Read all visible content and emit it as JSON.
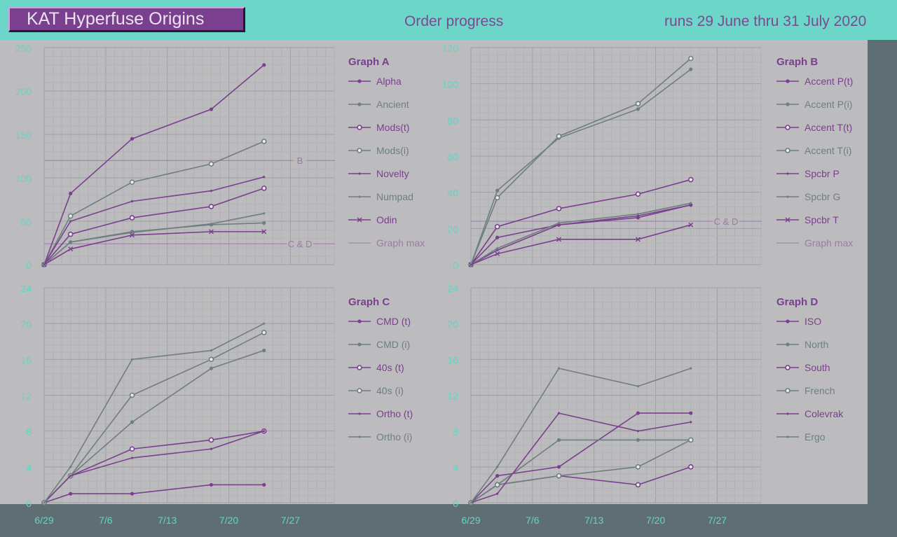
{
  "header": {
    "logo": "KAT Hyperfuse Origins",
    "subtitle": "Order progress",
    "runs": "runs 29 June thru 31 July 2020"
  },
  "colors": {
    "purple": "#7b3f8f",
    "gray": "#6e7f7f",
    "axis_text": "#5fd6c6",
    "refline": "#9c7ba6"
  },
  "chart_data": [
    {
      "id": "A",
      "type": "line",
      "title": "Graph A",
      "ylim": [
        0,
        250
      ],
      "yticks": [
        0,
        50,
        100,
        150,
        200,
        250
      ],
      "xlabels": [
        "6/29",
        "7/6",
        "7/13",
        "7/20",
        "7/27"
      ],
      "x": [
        0,
        3,
        10,
        19,
        25
      ],
      "series": [
        {
          "name": "Alpha",
          "color": "purple",
          "marker": "dot",
          "values": [
            0,
            82,
            145,
            179,
            230
          ]
        },
        {
          "name": "Ancient",
          "color": "gray",
          "marker": "dot",
          "values": [
            0,
            26,
            38,
            46,
            48
          ]
        },
        {
          "name": "Mods(t)",
          "color": "purple",
          "marker": "circle",
          "values": [
            0,
            35,
            54,
            67,
            88
          ]
        },
        {
          "name": "Mods(i)",
          "color": "gray",
          "marker": "circle",
          "values": [
            0,
            56,
            95,
            116,
            142
          ]
        },
        {
          "name": "Novelty",
          "color": "purple",
          "marker": "small",
          "values": [
            0,
            50,
            73,
            85,
            101
          ]
        },
        {
          "name": "Numpad",
          "color": "gray",
          "marker": "small",
          "values": [
            0,
            26,
            37,
            47,
            59
          ]
        },
        {
          "name": "Odin",
          "color": "purple",
          "marker": "x",
          "values": [
            0,
            18,
            34,
            38,
            38
          ]
        }
      ],
      "graph_max_label": "Graph max",
      "reflines": [
        {
          "label": "B",
          "value": 120
        },
        {
          "label": "C & D",
          "value": 24
        }
      ]
    },
    {
      "id": "B",
      "type": "line",
      "title": "Graph B",
      "ylim": [
        0,
        120
      ],
      "yticks": [
        0,
        20,
        40,
        60,
        80,
        100,
        120
      ],
      "xlabels": [
        "6/29",
        "7/6",
        "7/13",
        "7/20",
        "7/27"
      ],
      "x": [
        0,
        3,
        10,
        19,
        25
      ],
      "series": [
        {
          "name": "Accent P(t)",
          "color": "purple",
          "marker": "dot",
          "values": [
            0,
            15,
            22,
            26,
            33
          ]
        },
        {
          "name": "Accent P(i)",
          "color": "gray",
          "marker": "dot",
          "values": [
            0,
            41,
            70,
            86,
            108
          ]
        },
        {
          "name": "Accent T(t)",
          "color": "purple",
          "marker": "circle",
          "values": [
            0,
            21,
            31,
            39,
            47
          ]
        },
        {
          "name": "Accent T(i)",
          "color": "gray",
          "marker": "circle",
          "values": [
            0,
            37,
            71,
            89,
            114
          ]
        },
        {
          "name": "Spcbr P",
          "color": "purple",
          "marker": "small",
          "values": [
            0,
            8,
            22,
            27,
            33
          ]
        },
        {
          "name": "Spcbr G",
          "color": "gray",
          "marker": "small",
          "values": [
            0,
            9,
            23,
            28,
            34
          ]
        },
        {
          "name": "Spcbr T",
          "color": "purple",
          "marker": "x",
          "values": [
            0,
            6,
            14,
            14,
            22
          ]
        }
      ],
      "graph_max_label": "Graph max",
      "reflines": [
        {
          "label": "C & D",
          "value": 24
        }
      ]
    },
    {
      "id": "C",
      "type": "line",
      "title": "Graph C",
      "ylim": [
        0,
        24
      ],
      "yticks": [
        0,
        4,
        8,
        12,
        16,
        20,
        24
      ],
      "xlabels": [
        "6/29",
        "7/6",
        "7/13",
        "7/20",
        "7/27"
      ],
      "x": [
        0,
        3,
        10,
        19,
        25
      ],
      "series": [
        {
          "name": "CMD (t)",
          "color": "purple",
          "marker": "dot",
          "values": [
            0,
            1,
            1,
            2,
            2
          ]
        },
        {
          "name": "CMD (i)",
          "color": "gray",
          "marker": "dot",
          "values": [
            0,
            3,
            9,
            15,
            17
          ]
        },
        {
          "name": "40s (t)",
          "color": "purple",
          "marker": "circle",
          "values": [
            0,
            3,
            6,
            7,
            8
          ]
        },
        {
          "name": "40s (i)",
          "color": "gray",
          "marker": "circle",
          "values": [
            0,
            3,
            12,
            16,
            19
          ]
        },
        {
          "name": "Ortho (t)",
          "color": "purple",
          "marker": "small",
          "values": [
            0,
            3,
            5,
            6,
            8
          ]
        },
        {
          "name": "Ortho (i)",
          "color": "gray",
          "marker": "small",
          "values": [
            0,
            4,
            16,
            17,
            20
          ]
        }
      ],
      "reflines": []
    },
    {
      "id": "D",
      "type": "line",
      "title": "Graph D",
      "ylim": [
        0,
        24
      ],
      "yticks": [
        0,
        4,
        8,
        12,
        16,
        20,
        24
      ],
      "xlabels": [
        "6/29",
        "7/6",
        "7/13",
        "7/20",
        "7/27"
      ],
      "x": [
        0,
        3,
        10,
        19,
        25
      ],
      "series": [
        {
          "name": "ISO",
          "color": "purple",
          "marker": "dot",
          "values": [
            0,
            3,
            4,
            10,
            10
          ]
        },
        {
          "name": "North",
          "color": "gray",
          "marker": "dot",
          "values": [
            0,
            2,
            7,
            7,
            7
          ]
        },
        {
          "name": "South",
          "color": "purple",
          "marker": "circle",
          "values": [
            0,
            2,
            3,
            2,
            4
          ]
        },
        {
          "name": "French",
          "color": "gray",
          "marker": "circle",
          "values": [
            0,
            2,
            3,
            4,
            7
          ]
        },
        {
          "name": "Colevrak",
          "color": "purple",
          "marker": "small",
          "values": [
            0,
            1,
            10,
            8,
            9
          ]
        },
        {
          "name": "Ergo",
          "color": "gray",
          "marker": "small",
          "values": [
            0,
            4,
            15,
            13,
            15
          ]
        }
      ],
      "reflines": []
    }
  ]
}
